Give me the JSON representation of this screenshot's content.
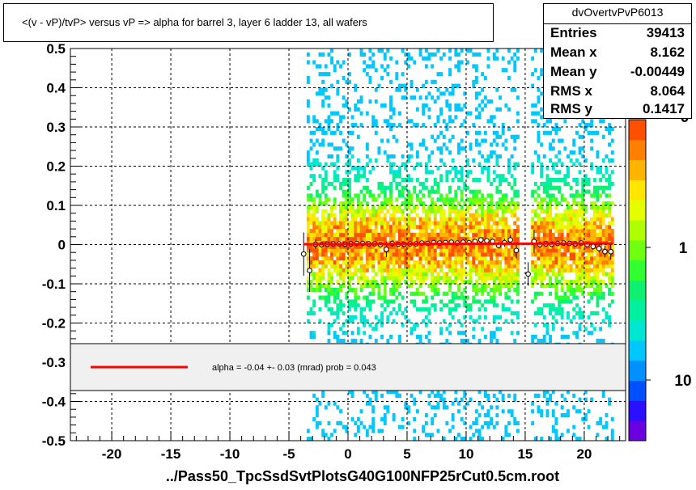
{
  "chart_data": {
    "type": "heatmap",
    "title": "<(v - vP)/tvP>  versus   vP => alpha for barrel 3, layer 6 ladder 13, all wafers",
    "xlabel": "../Pass50_TpcSsdSvtPlotsG40G100NFP25rCut0.5cm.root",
    "ylabel": "",
    "xlim": [
      -23.5,
      23.5
    ],
    "ylim": [
      -0.5,
      0.5
    ],
    "x_ticks": [
      "-20",
      "-15",
      "-10",
      "-5",
      "0",
      "5",
      "10",
      "15",
      "20"
    ],
    "y_ticks": [
      "0.5",
      "0.4",
      "0.3",
      "0.2",
      "0.1",
      "0",
      "-0.1",
      "-0.2",
      "-0.3",
      "-0.4",
      "-0.5"
    ],
    "z_scale": "log",
    "z_ticks": [
      "1",
      "10"
    ],
    "z_top_label_fragment": "0",
    "grid": true,
    "occupied_x_ranges": [
      [
        -3.5,
        14.5
      ],
      [
        15.5,
        22.5
      ]
    ],
    "profile_points": [
      {
        "x": -3.75,
        "y": -0.024,
        "err": 0.055
      },
      {
        "x": -3.25,
        "y": -0.066,
        "err": 0.055
      },
      {
        "x": -2.75,
        "y": 0.001,
        "err": 0.012
      },
      {
        "x": -2.25,
        "y": 0.0,
        "err": 0.006
      },
      {
        "x": -1.75,
        "y": 0.001,
        "err": 0.005
      },
      {
        "x": -1.25,
        "y": 0.002,
        "err": 0.004
      },
      {
        "x": -0.75,
        "y": 0.002,
        "err": 0.004
      },
      {
        "x": -0.25,
        "y": 0.001,
        "err": 0.004
      },
      {
        "x": 0.25,
        "y": 0.002,
        "err": 0.004
      },
      {
        "x": 0.75,
        "y": 0.003,
        "err": 0.004
      },
      {
        "x": 1.25,
        "y": 0.003,
        "err": 0.004
      },
      {
        "x": 1.75,
        "y": 0.002,
        "err": 0.004
      },
      {
        "x": 2.25,
        "y": 0.002,
        "err": 0.005
      },
      {
        "x": 2.75,
        "y": 0.0,
        "err": 0.006
      },
      {
        "x": 3.25,
        "y": -0.012,
        "err": 0.02
      },
      {
        "x": 3.75,
        "y": 0.003,
        "err": 0.008
      },
      {
        "x": 4.25,
        "y": 0.001,
        "err": 0.005
      },
      {
        "x": 4.75,
        "y": 0.001,
        "err": 0.005
      },
      {
        "x": 5.25,
        "y": 0.002,
        "err": 0.005
      },
      {
        "x": 5.75,
        "y": 0.002,
        "err": 0.005
      },
      {
        "x": 6.25,
        "y": 0.004,
        "err": 0.005
      },
      {
        "x": 6.75,
        "y": 0.003,
        "err": 0.005
      },
      {
        "x": 7.25,
        "y": 0.005,
        "err": 0.005
      },
      {
        "x": 7.75,
        "y": 0.004,
        "err": 0.005
      },
      {
        "x": 8.25,
        "y": 0.005,
        "err": 0.005
      },
      {
        "x": 8.75,
        "y": 0.006,
        "err": 0.005
      },
      {
        "x": 9.25,
        "y": 0.004,
        "err": 0.005
      },
      {
        "x": 9.75,
        "y": 0.006,
        "err": 0.005
      },
      {
        "x": 10.25,
        "y": 0.005,
        "err": 0.005
      },
      {
        "x": 10.75,
        "y": 0.008,
        "err": 0.005
      },
      {
        "x": 11.25,
        "y": 0.012,
        "err": 0.006
      },
      {
        "x": 11.75,
        "y": 0.01,
        "err": 0.006
      },
      {
        "x": 12.25,
        "y": 0.008,
        "err": 0.006
      },
      {
        "x": 12.75,
        "y": -0.002,
        "err": 0.008
      },
      {
        "x": 13.25,
        "y": 0.005,
        "err": 0.01
      },
      {
        "x": 13.75,
        "y": 0.012,
        "err": 0.012
      },
      {
        "x": 14.25,
        "y": -0.015,
        "err": 0.02
      },
      {
        "x": 15.25,
        "y": -0.075,
        "err": 0.03
      },
      {
        "x": 15.75,
        "y": 0.008,
        "err": 0.03
      },
      {
        "x": 16.25,
        "y": 0.0,
        "err": 0.008
      },
      {
        "x": 16.75,
        "y": 0.002,
        "err": 0.005
      },
      {
        "x": 17.25,
        "y": 0.001,
        "err": 0.005
      },
      {
        "x": 17.75,
        "y": 0.003,
        "err": 0.005
      },
      {
        "x": 18.25,
        "y": 0.004,
        "err": 0.005
      },
      {
        "x": 18.75,
        "y": 0.003,
        "err": 0.005
      },
      {
        "x": 19.25,
        "y": 0.002,
        "err": 0.005
      },
      {
        "x": 19.75,
        "y": 0.004,
        "err": 0.005
      },
      {
        "x": 20.25,
        "y": 0.0,
        "err": 0.006
      },
      {
        "x": 20.75,
        "y": -0.005,
        "err": 0.008
      },
      {
        "x": 21.25,
        "y": -0.01,
        "err": 0.01
      },
      {
        "x": 21.75,
        "y": -0.018,
        "err": 0.015
      },
      {
        "x": 22.25,
        "y": -0.018,
        "err": 0.02
      }
    ],
    "fit_line": {
      "x": [
        -3.8,
        22.4
      ],
      "y": [
        0.001,
        0.003
      ],
      "color": "#ff0000"
    },
    "legend": {
      "position": "lower-middle",
      "text": "alpha =   -0.04 +-  0.03 (mrad) prob = 0.043"
    }
  },
  "stats": {
    "name": "dvOvertvPvP6013",
    "rows": [
      {
        "label": "Entries",
        "value": "39413"
      },
      {
        "label": "Mean x",
        "value": "8.162"
      },
      {
        "label": "Mean y",
        "value": "-0.00449"
      },
      {
        "label": "RMS x",
        "value": "8.064"
      },
      {
        "label": "RMS y",
        "value": "0.1417"
      }
    ]
  },
  "colors": {
    "fit": "#ff0000",
    "frame": "#000000",
    "legend_bg": "#f0f0f0",
    "palette": [
      "#6a00e0",
      "#2a10ff",
      "#0050ff",
      "#0090ff",
      "#00c8ff",
      "#00e6d0",
      "#00f0a0",
      "#10f070",
      "#30ff30",
      "#70ff10",
      "#b0ff00",
      "#e6ff00",
      "#ffe600",
      "#ffb400",
      "#ff8000",
      "#ff5000"
    ]
  }
}
